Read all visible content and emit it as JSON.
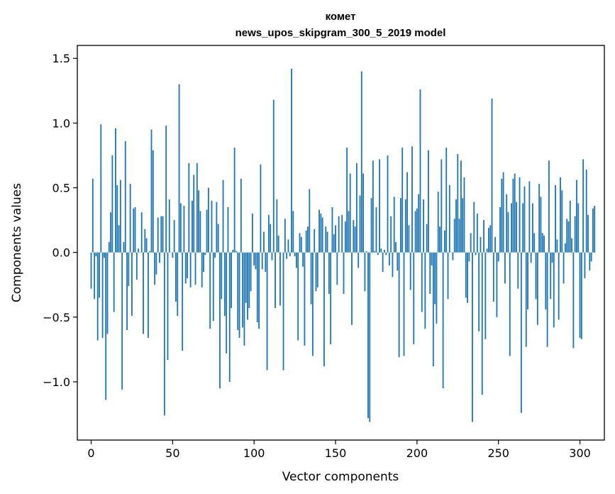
{
  "chart_data": {
    "type": "bar",
    "title": "комет",
    "subtitle": "news_upos_skipgram_300_5_2019 model",
    "xlabel": "Vector components",
    "ylabel": "Components values",
    "xlim": [
      -8.5,
      315
    ],
    "ylim": [
      -1.45,
      1.6
    ],
    "xticks": [
      0,
      50,
      100,
      150,
      200,
      250,
      300
    ],
    "xtick_labels": [
      "0",
      "50",
      "100",
      "150",
      "200",
      "250",
      "300"
    ],
    "yticks": [
      -1.0,
      -0.5,
      0.0,
      0.5,
      1.0,
      1.5
    ],
    "ytick_labels": [
      "−1.0",
      "−0.5",
      "0.0",
      "0.5",
      "1.0",
      "1.5"
    ],
    "grid": false,
    "bar_color": "#1f77b4",
    "x_start": 0,
    "values": [
      -0.28,
      0.57,
      -0.36,
      -0.03,
      -0.68,
      -0.35,
      0.99,
      -0.66,
      -0.04,
      -1.14,
      -0.63,
      0.08,
      0.31,
      0.75,
      -0.46,
      0.96,
      0.52,
      0.21,
      0.56,
      -1.06,
      0.08,
      0.86,
      -0.6,
      -0.26,
      0.53,
      -0.49,
      0.34,
      0.35,
      -0.21,
      0.03,
      0.0,
      0.31,
      -0.63,
      0.18,
      0.11,
      -0.66,
      0.01,
      0.95,
      0.79,
      -0.25,
      -0.17,
      0.27,
      -0.08,
      0.28,
      0.28,
      -1.26,
      0.98,
      -0.83,
      0.41,
      0.0,
      -0.04,
      0.25,
      -0.38,
      -0.49,
      1.3,
      0.38,
      -0.76,
      0.36,
      -0.24,
      -0.2,
      0.69,
      -0.27,
      0.4,
      0.6,
      -0.25,
      0.69,
      0.48,
      0.32,
      -0.27,
      -0.15,
      -0.02,
      0.33,
      0.5,
      -0.59,
      0.4,
      -0.53,
      -0.04,
      0.39,
      0.22,
      -1.05,
      -0.36,
      0.56,
      -0.49,
      -0.78,
      0.35,
      -1.0,
      -0.43,
      0.02,
      0.81,
      0.01,
      -0.6,
      -0.66,
      0.57,
      -0.58,
      -0.72,
      -0.39,
      -0.52,
      -0.43,
      -0.3,
      0.3,
      -0.1,
      -0.13,
      -0.54,
      -0.59,
      0.68,
      -0.13,
      0.16,
      -0.15,
      -0.91,
      0.29,
      0.22,
      -0.06,
      1.18,
      -0.43,
      0.41,
      0.13,
      -0.41,
      0.0,
      -0.91,
      0.26,
      -0.05,
      0.1,
      -0.03,
      1.42,
      0.32,
      -0.03,
      -0.12,
      -0.68,
      0.15,
      0.12,
      -0.11,
      -0.72,
      0.17,
      0.2,
      0.49,
      -0.4,
      -0.8,
      0.18,
      -0.3,
      -0.27,
      0.33,
      0.3,
      0.27,
      -0.88,
      0.2,
      0.16,
      -0.32,
      -0.71,
      0.35,
      0.14,
      0.21,
      -0.25,
      0.28,
      0.0,
      0.29,
      -0.32,
      0.24,
      0.81,
      0.32,
      0.61,
      -0.56,
      0.25,
      0.2,
      0.69,
      -0.12,
      0.44,
      1.4,
      0.61,
      -0.3,
      0.01,
      -1.28,
      -1.31,
      0.42,
      0.71,
      0.01,
      0.35,
      -0.02,
      0.72,
      0.03,
      -0.15,
      0.02,
      -0.02,
      0.75,
      -0.1,
      0.28,
      -0.19,
      0.43,
      0.08,
      -0.14,
      -0.81,
      0.42,
      0.81,
      -0.8,
      0.41,
      0.62,
      0.21,
      -0.29,
      0.82,
      -0.71,
      0.32,
      0.34,
      0.45,
      1.26,
      -0.46,
      0.41,
      -0.59,
      0.22,
      0.79,
      -0.32,
      -0.1,
      -0.88,
      -0.4,
      -0.55,
      0.47,
      0.2,
      0.72,
      -1.05,
      0.17,
      0.81,
      -0.36,
      0.52,
      0.0,
      -0.06,
      0.26,
      0.41,
      0.76,
      0.26,
      0.71,
      0.42,
      0.58,
      -0.35,
      -0.39,
      -0.07,
      0.15,
      -1.31,
      0.39,
      -0.02,
      0.3,
      -0.61,
      0.12,
      -1.1,
      0.25,
      -0.67,
      0.03,
      0.19,
      0.21,
      1.19,
      -0.38,
      0.12,
      -0.5,
      -0.07,
      0.35,
      0.57,
      0.62,
      -0.24,
      0.45,
      0.31,
      -0.8,
      0.38,
      0.57,
      0.61,
      0.39,
      -0.28,
      0.58,
      -1.24,
      0.38,
      0.51,
      -0.73,
      -0.44,
      0.55,
      -0.08,
      0.38,
      0.15,
      -0.36,
      -0.56,
      0.53,
      0.43,
      0.15,
      0.13,
      -0.44,
      -0.73,
      0.71,
      -0.36,
      -0.08,
      -0.58,
      0.52,
      0.1,
      -0.52,
      0.58,
      0.48,
      -0.24,
      0.07,
      0.26,
      0.24,
      0.4,
      0.11,
      -0.74,
      0.28,
      0.56,
      0.38,
      -0.66,
      -0.67,
      0.72,
      -0.2,
      0.64,
      0.29,
      -0.14,
      -0.07,
      0.34,
      0.36
    ]
  }
}
